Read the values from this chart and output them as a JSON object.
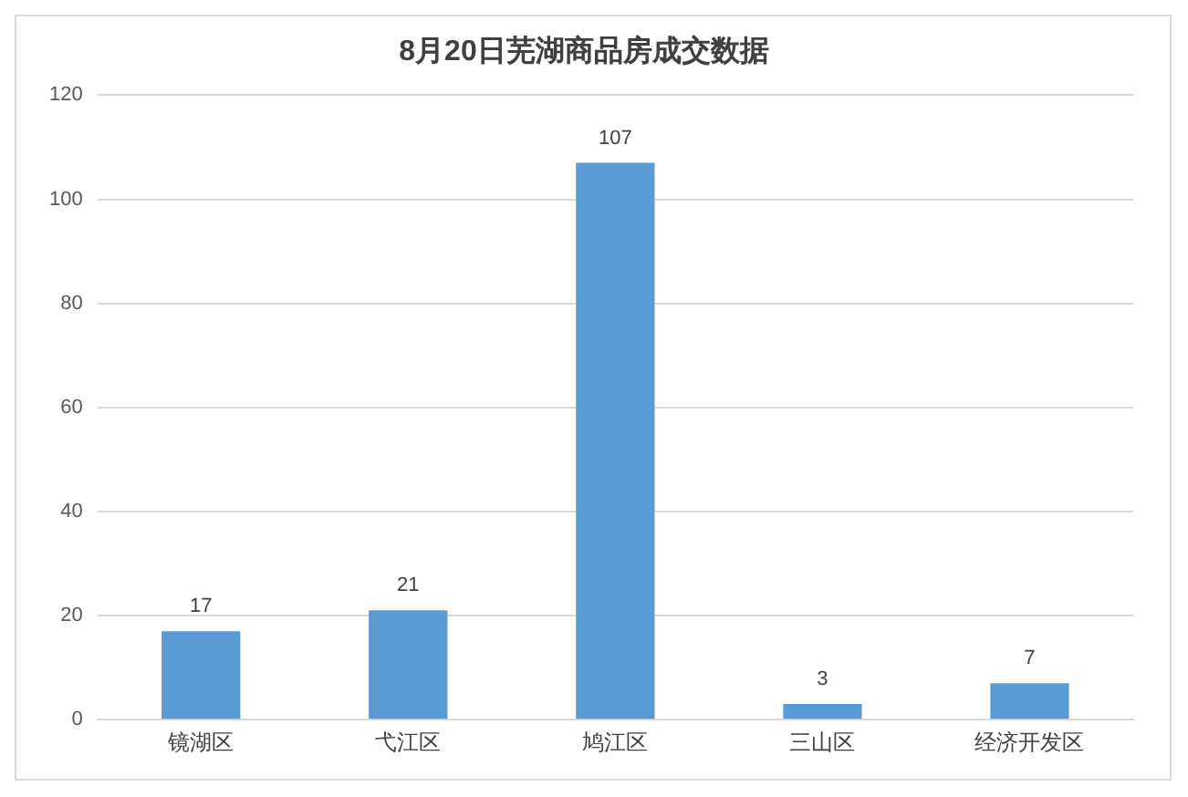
{
  "chart_data": {
    "type": "bar",
    "title": "8月20日芜湖商品房成交数据",
    "categories": [
      "镜湖区",
      "弋江区",
      "鸠江区",
      "三山区",
      "经济开发区"
    ],
    "values": [
      17,
      21,
      107,
      3,
      7
    ],
    "color": "#5b9bd5",
    "ylim": [
      0,
      120
    ],
    "yticks": [
      0,
      20,
      40,
      60,
      80,
      100,
      120
    ],
    "grid": "y",
    "data_labels": true,
    "legend": false
  }
}
